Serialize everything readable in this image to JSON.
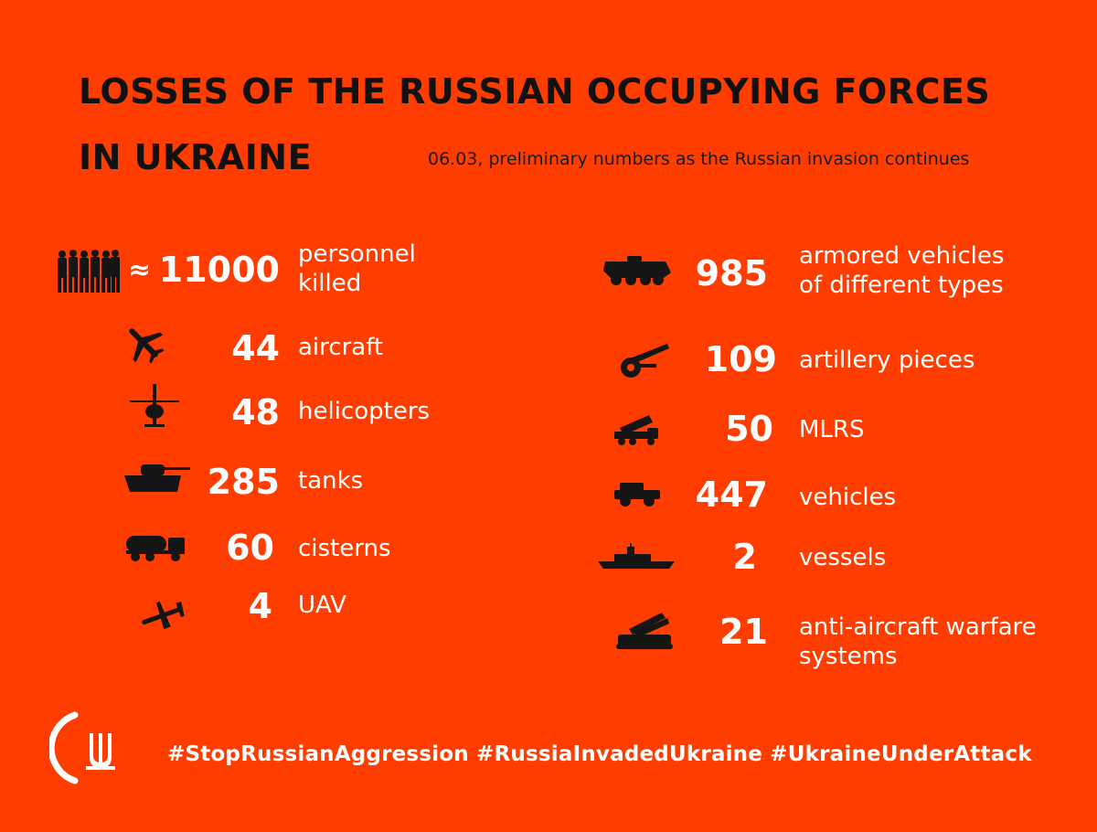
{
  "header": {
    "title_line1": "LOSSES OF THE RUSSIAN OCCUPYING FORCES",
    "title_line2": "IN UKRAINE",
    "subtitle": "06.03, preliminary numbers as the Russian invasion continues"
  },
  "personnel": {
    "approx": "≈",
    "value": "11000",
    "label_line1": "personnel",
    "label_line2": "killed",
    "icon": "soldiers-icon"
  },
  "left_items": [
    {
      "value": "44",
      "label": "aircraft",
      "icon": "airplane-icon"
    },
    {
      "value": "48",
      "label": "helicopters",
      "icon": "helicopter-icon"
    },
    {
      "value": "285",
      "label": "tanks",
      "icon": "tank-icon"
    },
    {
      "value": "60",
      "label": "cisterns",
      "icon": "fuel-truck-icon"
    },
    {
      "value": "4",
      "label": "UAV",
      "icon": "drone-icon"
    }
  ],
  "right_items": [
    {
      "value": "985",
      "label_line1": "armored vehicles",
      "label_line2": "of different types",
      "icon": "apc-icon"
    },
    {
      "value": "109",
      "label": "artillery pieces",
      "icon": "artillery-icon"
    },
    {
      "value": "50",
      "label": "MLRS",
      "icon": "mlrs-icon"
    },
    {
      "value": "447",
      "label": "vehicles",
      "icon": "jeep-icon"
    },
    {
      "value": "2",
      "label": "vessels",
      "icon": "warship-icon"
    },
    {
      "value": "21",
      "label_line1": "anti-aircraft warfare",
      "label_line2": "systems",
      "icon": "air-defense-icon"
    }
  ],
  "footer": {
    "hashtags": "#StopRussianAggression #RussiaInvadedUkraine #UkraineUnderAttack",
    "logo": "ukraine-trident-logo"
  },
  "colors": {
    "background": "#ff3d00",
    "title": "#111111",
    "numbers": "#ffffff",
    "icons": "#151515"
  }
}
